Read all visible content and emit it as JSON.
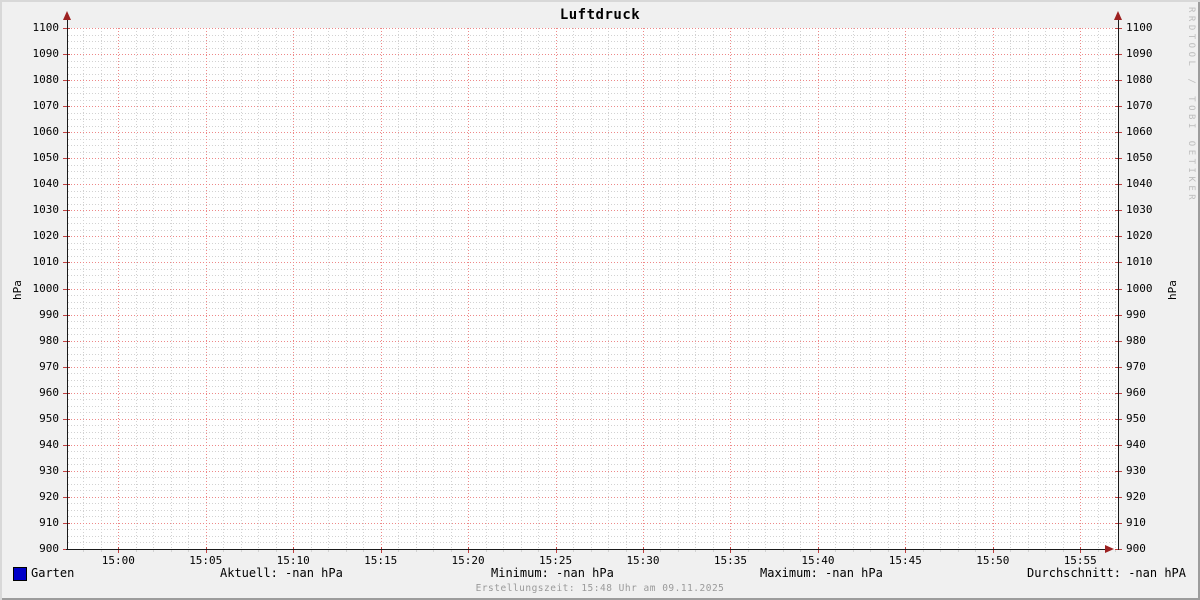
{
  "chart_data": {
    "type": "line",
    "title": "Luftdruck",
    "y_axis": {
      "label_left": "hPa",
      "label_right": "hPa",
      "min": 900,
      "max": 1100,
      "major_step": 10,
      "minor_step": 2.5,
      "ticks": [
        900,
        910,
        920,
        930,
        940,
        950,
        960,
        970,
        980,
        990,
        1000,
        1010,
        1020,
        1030,
        1040,
        1050,
        1060,
        1070,
        1080,
        1090,
        1100
      ]
    },
    "x_axis": {
      "ticks": [
        "15:00",
        "15:05",
        "15:10",
        "15:15",
        "15:20",
        "15:25",
        "15:30",
        "15:35",
        "15:40",
        "15:45",
        "15:50",
        "15:55"
      ],
      "major_step_minutes": 5,
      "minor_step_minutes": 1
    },
    "series": [
      {
        "name": "Garten",
        "color": "#0000c8",
        "values": []
      }
    ],
    "legend": {
      "aktuell": "Aktuell: -nan hPa",
      "minimum": "Minimum: -nan hPa",
      "maximum": "Maximum: -nan hPa",
      "durchschnitt": "Durchschnitt: -nan hPA"
    },
    "grid": {
      "major_color": "#ee8888",
      "minor_color": "#d2d2d2",
      "tick_color": "#c04040",
      "axis_color": "#1a1a1a",
      "arrow_color": "#9d2121"
    },
    "legend_on": true,
    "grid_on": true
  },
  "footer": {
    "created": "Erstellungszeit: 15:48 Uhr am 09.11.2025"
  },
  "watermark": "RRDTOOL / TOBI OETIKER"
}
